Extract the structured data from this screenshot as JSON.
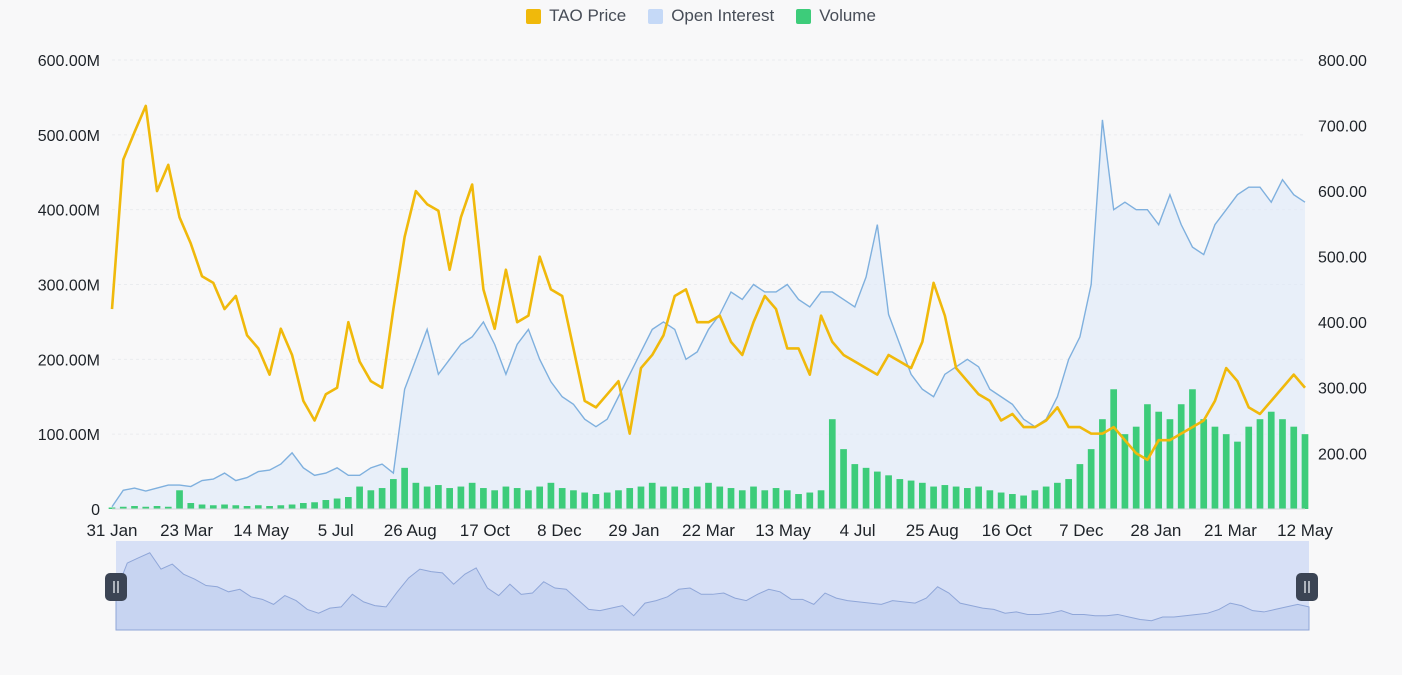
{
  "legend": {
    "items": [
      {
        "label": "TAO Price",
        "color": "#f0b90b"
      },
      {
        "label": "Open Interest",
        "color": "#c5d9f7"
      },
      {
        "label": "Volume",
        "color": "#3dcc7a"
      }
    ]
  },
  "chart_data": {
    "type": "line",
    "x_labels": [
      "31 Jan",
      "23 Mar",
      "14 May",
      "5 Jul",
      "26 Aug",
      "17 Oct",
      "8 Dec",
      "29 Jan",
      "22 Mar",
      "13 May",
      "4 Jul",
      "25 Aug",
      "16 Oct",
      "7 Dec",
      "28 Jan",
      "21 Mar",
      "12 May"
    ],
    "y_left": {
      "ticks": [
        "0",
        "100.00M",
        "200.00M",
        "300.00M",
        "400.00M",
        "500.00M",
        "600.00M"
      ],
      "range": [
        0,
        600000000
      ]
    },
    "y_right": {
      "ticks": [
        "200.00",
        "300.00",
        "400.00",
        "500.00",
        "600.00",
        "700.00",
        "800.00"
      ],
      "range": [
        115,
        800
      ]
    },
    "grid": true,
    "legend_position": "top-center",
    "series": [
      {
        "name": "TAO Price",
        "axis": "right",
        "color": "#f0b90b",
        "values": [
          420,
          648,
          690,
          730,
          600,
          640,
          560,
          520,
          470,
          460,
          420,
          440,
          380,
          360,
          320,
          390,
          350,
          280,
          250,
          290,
          300,
          400,
          340,
          310,
          300,
          420,
          530,
          600,
          580,
          570,
          480,
          560,
          610,
          450,
          390,
          480,
          400,
          410,
          500,
          450,
          440,
          360,
          280,
          270,
          290,
          310,
          230,
          330,
          350,
          380,
          440,
          450,
          400,
          400,
          410,
          370,
          350,
          400,
          440,
          420,
          360,
          360,
          320,
          410,
          370,
          350,
          340,
          330,
          320,
          350,
          340,
          330,
          370,
          460,
          410,
          330,
          310,
          290,
          280,
          250,
          260,
          240,
          240,
          250,
          270,
          240,
          240,
          230,
          230,
          240,
          220,
          200,
          190,
          220,
          220,
          230,
          240,
          250,
          280,
          330,
          310,
          270,
          260,
          280,
          300,
          320,
          300
        ]
      },
      {
        "name": "Open Interest",
        "axis": "left",
        "color": "#7fb0de",
        "values": [
          3,
          25,
          28,
          24,
          28,
          32,
          32,
          30,
          38,
          40,
          48,
          38,
          42,
          50,
          52,
          60,
          75,
          55,
          45,
          48,
          55,
          45,
          45,
          55,
          60,
          48,
          160,
          200,
          240,
          180,
          200,
          220,
          230,
          250,
          220,
          180,
          220,
          240,
          200,
          170,
          150,
          140,
          120,
          110,
          120,
          150,
          180,
          210,
          240,
          250,
          240,
          200,
          210,
          240,
          260,
          290,
          280,
          300,
          290,
          290,
          300,
          280,
          270,
          290,
          290,
          280,
          270,
          310,
          380,
          260,
          220,
          180,
          160,
          150,
          180,
          190,
          200,
          190,
          160,
          150,
          140,
          120,
          110,
          120,
          150,
          200,
          230,
          300,
          520,
          400,
          410,
          400,
          400,
          380,
          420,
          380,
          350,
          340,
          380,
          400,
          420,
          430,
          430,
          410,
          440,
          420,
          410
        ]
      },
      {
        "name": "Volume",
        "axis": "left",
        "color": "#3dcc7a",
        "values": [
          2,
          3,
          4,
          3,
          4,
          3,
          25,
          8,
          6,
          5,
          6,
          5,
          4,
          5,
          4,
          5,
          6,
          8,
          9,
          12,
          14,
          16,
          30,
          25,
          28,
          40,
          55,
          35,
          30,
          32,
          28,
          30,
          35,
          28,
          25,
          30,
          28,
          25,
          30,
          35,
          28,
          25,
          22,
          20,
          22,
          25,
          28,
          30,
          35,
          30,
          30,
          28,
          30,
          35,
          30,
          28,
          25,
          30,
          25,
          28,
          25,
          20,
          22,
          25,
          120,
          80,
          60,
          55,
          50,
          45,
          40,
          38,
          35,
          30,
          32,
          30,
          28,
          30,
          25,
          22,
          20,
          18,
          25,
          30,
          35,
          40,
          60,
          80,
          120,
          160,
          100,
          110,
          140,
          130,
          120,
          140,
          160,
          120,
          110,
          100,
          90,
          110,
          120,
          130,
          120,
          110,
          100
        ]
      }
    ]
  },
  "navigator": {
    "left_handle_icon": "drag-handle-icon",
    "right_handle_icon": "drag-handle-icon"
  }
}
